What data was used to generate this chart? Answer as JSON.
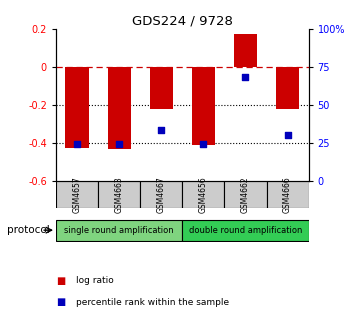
{
  "title": "GDS224 / 9728",
  "samples": [
    "GSM4657",
    "GSM4663",
    "GSM4667",
    "GSM4656",
    "GSM4662",
    "GSM4666"
  ],
  "log_ratio": [
    -0.43,
    -0.435,
    -0.225,
    -0.415,
    0.17,
    -0.225
  ],
  "percentile_rank": [
    24,
    24,
    33,
    24,
    68,
    30
  ],
  "ylim_left": [
    -0.6,
    0.2
  ],
  "ylim_right": [
    0,
    100
  ],
  "left_ticks": [
    0.2,
    0,
    -0.2,
    -0.4,
    -0.6
  ],
  "right_ticks": [
    100,
    75,
    50,
    25,
    0
  ],
  "groups": [
    {
      "label": "single round amplification",
      "indices": [
        0,
        1,
        2
      ],
      "color": "#7FD47F"
    },
    {
      "label": "double round amplification",
      "indices": [
        3,
        4,
        5
      ],
      "color": "#33CC55"
    }
  ],
  "bar_color": "#CC0000",
  "dot_color": "#0000BB",
  "background_color": "#FFFFFF",
  "sample_box_color": "#CCCCCC",
  "protocol_label": "protocol",
  "legend_items": [
    {
      "label": "log ratio",
      "color": "#CC0000"
    },
    {
      "label": "percentile rank within the sample",
      "color": "#0000BB"
    }
  ],
  "bar_width": 0.55,
  "dot_size": 18
}
